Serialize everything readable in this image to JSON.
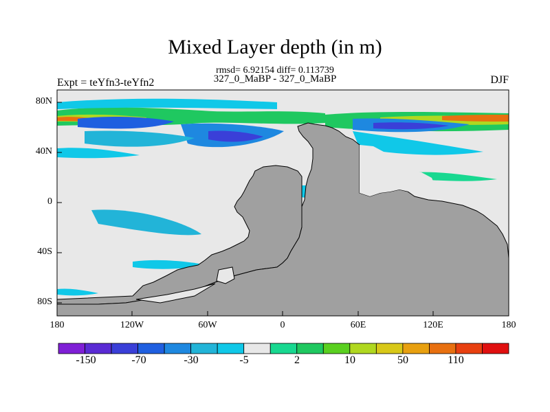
{
  "header": {
    "title": "Mixed Layer depth (in m)",
    "stats": "rmsd= 6.92154 diff= 0.113739",
    "experiments": "327_0_MaBP - 327_0_MaBP",
    "expt_label": "Expt = teYfn3-teYfn2",
    "season": "DJF"
  },
  "axes": {
    "lat_ticks": [
      "80N",
      "40N",
      "0",
      "40S",
      "80S"
    ],
    "lon_ticks": [
      "180",
      "120W",
      "60W",
      "0",
      "60E",
      "120E",
      "180"
    ]
  },
  "colorbar": {
    "labels": [
      "-150",
      "-70",
      "-30",
      "-5",
      "2",
      "10",
      "50",
      "110"
    ],
    "colors": [
      "#7f1fd6",
      "#5a2bd4",
      "#3a3fd8",
      "#1f5fe0",
      "#1e88e0",
      "#22b4d8",
      "#10c8e8",
      "#e8e8e8",
      "#18d890",
      "#1fc860",
      "#5ad020",
      "#b0d820",
      "#d8c818",
      "#e8a010",
      "#e87010",
      "#e84010",
      "#e01010"
    ]
  },
  "map": {
    "ocean_color": "#e8e8e8",
    "land_color": "#a0a0a0"
  }
}
